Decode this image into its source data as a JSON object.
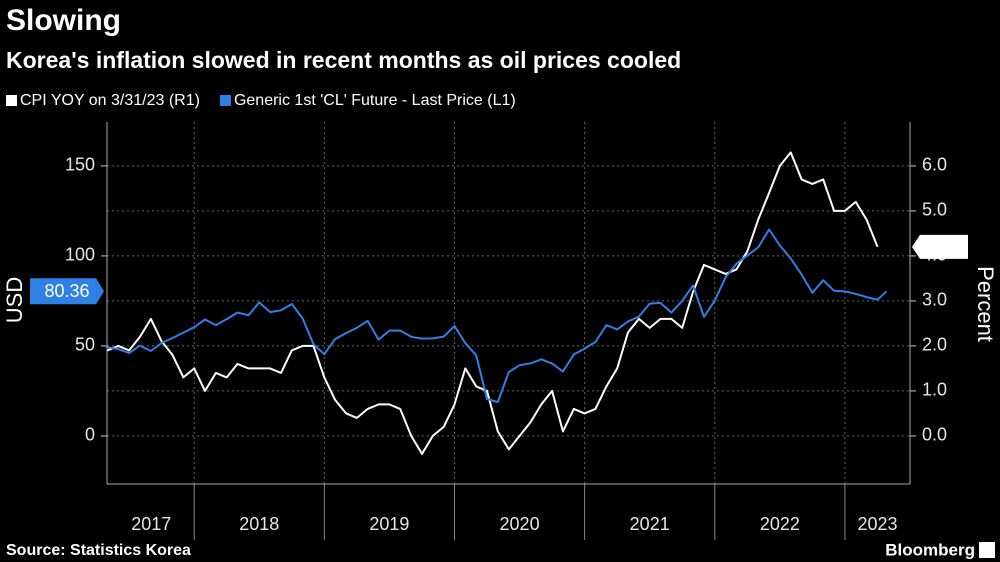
{
  "chart_data": {
    "type": "line",
    "title": "Slowing",
    "subtitle": "Korea's inflation slowed in recent months as oil prices cooled",
    "source": "Source: Statistics Korea",
    "brand": "Bloomberg",
    "ylabel": "USD",
    "y2label": "Percent",
    "xlim": [
      2017.33,
      2023.5
    ],
    "xticks": [
      {
        "value": 2017.67,
        "label": "2017"
      },
      {
        "value": 2018.5,
        "label": "2018"
      },
      {
        "value": 2019.5,
        "label": "2019"
      },
      {
        "value": 2020.5,
        "label": "2020"
      },
      {
        "value": 2021.5,
        "label": "2021"
      },
      {
        "value": 2022.5,
        "label": "2022"
      },
      {
        "value": 2023.25,
        "label": "2023"
      }
    ],
    "xgrid": [
      2018,
      2019,
      2020,
      2021,
      2022,
      2023
    ],
    "ylim": [
      -26.7,
      174.4
    ],
    "yticks": [
      0,
      50,
      100,
      150
    ],
    "y2lim": [
      -1.068,
      6.976
    ],
    "y2ticks": [
      {
        "value": 0,
        "label": "0.0"
      },
      {
        "value": 1,
        "label": "1.0"
      },
      {
        "value": 2,
        "label": "2.0"
      },
      {
        "value": 3,
        "label": "3.0"
      },
      {
        "value": 4,
        "label": "4.0"
      },
      {
        "value": 5,
        "label": "5.0"
      },
      {
        "value": 6,
        "label": "6.0"
      }
    ],
    "grid": true,
    "x": [
      2017.333,
      2017.417,
      2017.5,
      2017.583,
      2017.667,
      2017.75,
      2017.833,
      2017.917,
      2018.0,
      2018.083,
      2018.167,
      2018.25,
      2018.333,
      2018.417,
      2018.5,
      2018.583,
      2018.667,
      2018.75,
      2018.833,
      2018.917,
      2019.0,
      2019.083,
      2019.167,
      2019.25,
      2019.333,
      2019.417,
      2019.5,
      2019.583,
      2019.667,
      2019.75,
      2019.833,
      2019.917,
      2020.0,
      2020.083,
      2020.167,
      2020.25,
      2020.333,
      2020.417,
      2020.5,
      2020.583,
      2020.667,
      2020.75,
      2020.833,
      2020.917,
      2021.0,
      2021.083,
      2021.167,
      2021.25,
      2021.333,
      2021.417,
      2021.5,
      2021.583,
      2021.667,
      2021.75,
      2021.833,
      2021.917,
      2022.0,
      2022.083,
      2022.167,
      2022.25,
      2022.333,
      2022.417,
      2022.5,
      2022.583,
      2022.667,
      2022.75,
      2022.833,
      2022.917,
      2023.0,
      2023.083,
      2023.167,
      2023.25,
      2023.32
    ],
    "series": [
      {
        "name": "CPI YOY on 3/31/23 (R1)",
        "color": "#ffffff",
        "axis": "y2",
        "values": [
          1.9,
          2.0,
          1.9,
          2.2,
          2.6,
          2.1,
          1.8,
          1.3,
          1.5,
          1.0,
          1.4,
          1.3,
          1.6,
          1.5,
          1.5,
          1.5,
          1.4,
          1.9,
          2.0,
          2.0,
          1.3,
          0.8,
          0.5,
          0.4,
          0.6,
          0.7,
          0.7,
          0.6,
          0.0,
          -0.4,
          0.0,
          0.2,
          0.7,
          1.5,
          1.1,
          1.0,
          0.1,
          -0.3,
          0.0,
          0.3,
          0.7,
          1.0,
          0.1,
          0.6,
          0.5,
          0.6,
          1.1,
          1.5,
          2.3,
          2.6,
          2.4,
          2.6,
          2.6,
          2.4,
          3.2,
          3.8,
          3.7,
          3.6,
          3.7,
          4.1,
          4.8,
          5.4,
          6.0,
          6.3,
          5.7,
          5.6,
          5.7,
          5.0,
          5.0,
          5.2,
          4.8,
          4.2,
          null
        ]
      },
      {
        "name": "Generic 1st 'CL' Future - Last Price (L1)",
        "color": "#2f80e4",
        "axis": "y",
        "values": [
          49.3,
          48.3,
          46.0,
          50.2,
          47.2,
          51.7,
          54.4,
          57.4,
          60.4,
          64.7,
          61.6,
          64.9,
          68.6,
          67.0,
          74.2,
          68.8,
          69.8,
          73.3,
          65.3,
          50.9,
          45.4,
          53.8,
          57.2,
          60.1,
          63.9,
          53.5,
          58.5,
          58.6,
          55.1,
          54.1,
          54.2,
          55.2,
          61.1,
          51.6,
          44.8,
          20.5,
          18.8,
          35.5,
          39.3,
          40.3,
          42.6,
          40.2,
          35.8,
          45.3,
          48.5,
          52.2,
          61.5,
          59.2,
          63.6,
          66.3,
          73.5,
          73.9,
          68.5,
          75.0,
          83.6,
          66.2,
          75.2,
          88.2,
          95.7,
          100.3,
          104.7,
          114.7,
          105.8,
          98.6,
          89.6,
          79.5,
          86.5,
          80.6,
          80.3,
          78.9,
          77.1,
          75.7,
          80.36
        ]
      }
    ]
  }
}
